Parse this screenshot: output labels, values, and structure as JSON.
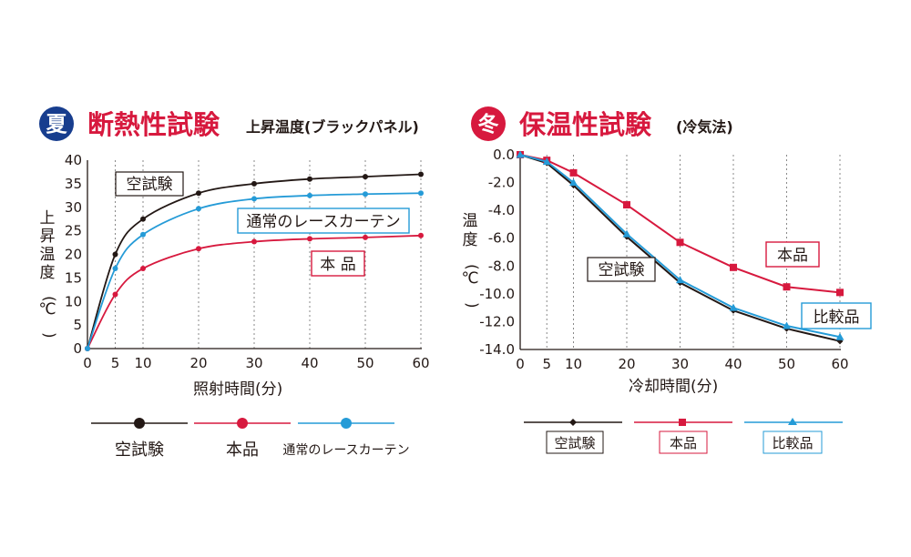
{
  "colors": {
    "black": "#231815",
    "red": "#d7193e",
    "blue": "#259bd7",
    "summer_badge": "#173d8e",
    "winter_badge": "#d7193e",
    "grid": "#888888"
  },
  "summer": {
    "badge": "夏",
    "title": "断熱性試験",
    "subtitle": "上昇温度(ブラックパネル)"
  },
  "winter": {
    "badge": "冬",
    "title": "保温性試験",
    "subtitle": "(冷気法)"
  },
  "chart_data": [
    {
      "type": "line",
      "xlabel": "照射時間(分)",
      "ylabel": "上昇温度(℃)",
      "xlim": [
        0,
        60
      ],
      "ylim": [
        0,
        40
      ],
      "x_ticks": [
        0,
        5,
        10,
        20,
        30,
        40,
        50,
        60
      ],
      "y_ticks": [
        0,
        5,
        10,
        15,
        20,
        25,
        30,
        35,
        40
      ],
      "grid": "vertical-dotted",
      "legend": "bottom",
      "x": [
        0,
        5,
        10,
        20,
        30,
        40,
        50,
        60
      ],
      "series": [
        {
          "name": "空試験",
          "color": "#231815",
          "marker": "circle",
          "values": [
            0,
            20,
            27.5,
            33,
            35,
            36,
            36.5,
            37
          ]
        },
        {
          "name": "本品",
          "color": "#d7193e",
          "marker": "circle",
          "values": [
            0,
            11.5,
            17,
            21.2,
            22.7,
            23.3,
            23.6,
            24
          ]
        },
        {
          "name": "通常のレースカーテン",
          "color": "#259bd7",
          "marker": "circle",
          "values": [
            0,
            17,
            24.2,
            29.7,
            31.8,
            32.5,
            32.8,
            33
          ]
        }
      ],
      "annotations": [
        "空試験",
        "通常のレースカーテン",
        "本 品"
      ]
    },
    {
      "type": "line",
      "xlabel": "冷却時間(分)",
      "ylabel": "温度(℃)",
      "xlim": [
        0,
        60
      ],
      "ylim": [
        -14,
        0
      ],
      "x_ticks": [
        0,
        5,
        10,
        20,
        30,
        40,
        50,
        60
      ],
      "y_ticks": [
        "0.0",
        "-2.0",
        "-4.0",
        "-6.0",
        "-8.0",
        "-10.0",
        "-12.0",
        "-14.0"
      ],
      "grid": "vertical-dotted",
      "legend": "bottom",
      "x": [
        0,
        5,
        10,
        20,
        30,
        40,
        50,
        60
      ],
      "series": [
        {
          "name": "空試験",
          "color": "#231815",
          "marker": "diamond",
          "values": [
            0,
            -0.6,
            -2.2,
            -5.9,
            -9.2,
            -11.2,
            -12.5,
            -13.4
          ]
        },
        {
          "name": "本品",
          "color": "#d7193e",
          "marker": "square",
          "values": [
            0,
            -0.4,
            -1.3,
            -3.6,
            -6.3,
            -8.1,
            -9.5,
            -9.9
          ]
        },
        {
          "name": "比較品",
          "color": "#259bd7",
          "marker": "triangle",
          "values": [
            0,
            -0.5,
            -2.0,
            -5.7,
            -9.0,
            -11.0,
            -12.3,
            -13.1
          ]
        }
      ],
      "annotations": [
        "空試験",
        "本品",
        "比較品"
      ]
    }
  ]
}
